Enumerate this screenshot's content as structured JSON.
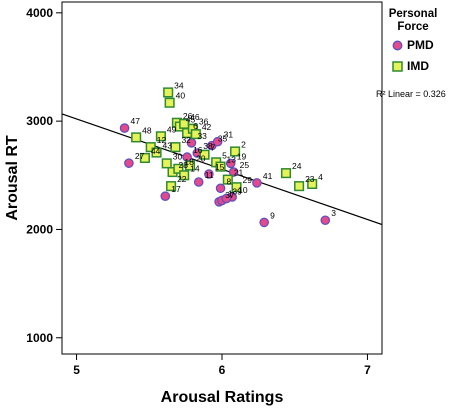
{
  "chart_data": {
    "type": "scatter",
    "xlabel": "Arousal Ratings",
    "ylabel": "Arousal RT",
    "xlim": [
      4.9,
      7.1
    ],
    "ylim": [
      850,
      4100
    ],
    "xticks": [
      5,
      6,
      7
    ],
    "yticks": [
      1000,
      2000,
      3000,
      4000
    ],
    "grid": false,
    "legend": {
      "title": "Personal Force",
      "placement": "top-right",
      "entries": [
        {
          "name": "PMD",
          "color": "#e24a8d",
          "edge": "#5a4fbf",
          "marker": "circle"
        },
        {
          "name": "IMD",
          "color": "#e6f25a",
          "edge": "#2f8a2f",
          "marker": "square"
        }
      ]
    },
    "fit": {
      "type": "linear",
      "label": "R² Linear = 0.326",
      "x": [
        4.9,
        7.1
      ],
      "y": [
        3067,
        2045
      ],
      "color": "#000000"
    },
    "series": [
      {
        "name": "PMD",
        "points": [
          {
            "x": 5.33,
            "y": 2936,
            "label": "47"
          },
          {
            "x": 5.36,
            "y": 2612,
            "label": "27"
          },
          {
            "x": 5.61,
            "y": 2307,
            "label": "17"
          },
          {
            "x": 5.76,
            "y": 2668,
            "label": "16"
          },
          {
            "x": 5.79,
            "y": 2800,
            "label": "33"
          },
          {
            "x": 5.83,
            "y": 2705,
            "label": "38"
          },
          {
            "x": 5.84,
            "y": 2438,
            "label": "11"
          },
          {
            "x": 5.91,
            "y": 2512,
            "label": "15"
          },
          {
            "x": 5.93,
            "y": 2774,
            "label": "35"
          },
          {
            "x": 5.97,
            "y": 2810,
            "label": "31"
          },
          {
            "x": 5.98,
            "y": 2255,
            "label": "37"
          },
          {
            "x": 5.99,
            "y": 2380,
            "label": "8"
          },
          {
            "x": 6.0,
            "y": 2268,
            "label": "1"
          },
          {
            "x": 6.06,
            "y": 2610,
            "label": "19"
          },
          {
            "x": 6.07,
            "y": 2300,
            "label": "10"
          },
          {
            "x": 6.08,
            "y": 2530,
            "label": "25"
          },
          {
            "x": 6.24,
            "y": 2430,
            "label": "41"
          },
          {
            "x": 6.29,
            "y": 2065,
            "label": "9"
          },
          {
            "x": 6.71,
            "y": 2085,
            "label": "3"
          },
          {
            "x": 6.03,
            "y": 2285,
            "label": "39"
          }
        ]
      },
      {
        "name": "IMD",
        "points": [
          {
            "x": 5.63,
            "y": 3265,
            "label": "34"
          },
          {
            "x": 5.64,
            "y": 3170,
            "label": "40"
          },
          {
            "x": 5.69,
            "y": 2985,
            "label": "26"
          },
          {
            "x": 5.71,
            "y": 2950,
            "label": "45"
          },
          {
            "x": 5.74,
            "y": 2975,
            "label": "46"
          },
          {
            "x": 5.76,
            "y": 2890,
            "label": "6"
          },
          {
            "x": 5.8,
            "y": 2930,
            "label": "36"
          },
          {
            "x": 5.82,
            "y": 2880,
            "label": "42"
          },
          {
            "x": 5.68,
            "y": 2760,
            "label": "32"
          },
          {
            "x": 5.41,
            "y": 2850,
            "label": "48"
          },
          {
            "x": 5.51,
            "y": 2760,
            "label": "12"
          },
          {
            "x": 5.55,
            "y": 2710,
            "label": "43"
          },
          {
            "x": 5.47,
            "y": 2660,
            "label": "44"
          },
          {
            "x": 5.62,
            "y": 2610,
            "label": "30"
          },
          {
            "x": 5.66,
            "y": 2530,
            "label": "28"
          },
          {
            "x": 5.7,
            "y": 2560,
            "label": "18"
          },
          {
            "x": 5.74,
            "y": 2500,
            "label": "14"
          },
          {
            "x": 5.78,
            "y": 2590,
            "label": "20"
          },
          {
            "x": 5.88,
            "y": 2690,
            "label": "7"
          },
          {
            "x": 5.96,
            "y": 2620,
            "label": "5"
          },
          {
            "x": 5.99,
            "y": 2580,
            "label": "13"
          },
          {
            "x": 6.04,
            "y": 2460,
            "label": "21"
          },
          {
            "x": 6.1,
            "y": 2390,
            "label": "29"
          },
          {
            "x": 6.09,
            "y": 2720,
            "label": "2"
          },
          {
            "x": 6.44,
            "y": 2520,
            "label": "24"
          },
          {
            "x": 6.62,
            "y": 2420,
            "label": "4"
          },
          {
            "x": 6.53,
            "y": 2400,
            "label": "23"
          },
          {
            "x": 5.58,
            "y": 2860,
            "label": "49"
          },
          {
            "x": 5.65,
            "y": 2400,
            "label": "22"
          }
        ]
      }
    ]
  }
}
